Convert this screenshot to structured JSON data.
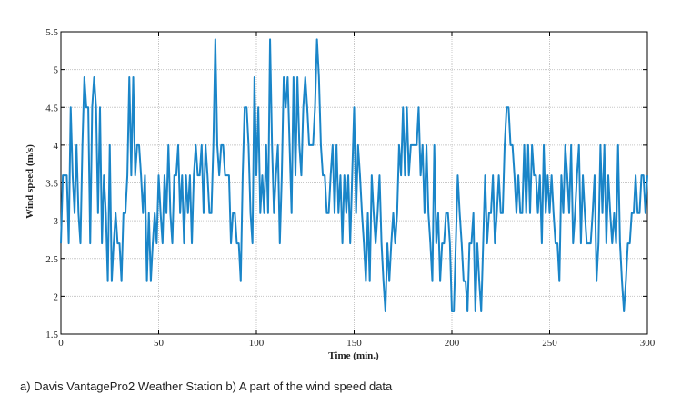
{
  "chart_data": {
    "type": "line",
    "xlabel": "Time (min.)",
    "ylabel": "Wind speed (m/s)",
    "caption": "a) Davis VantagePro2 Weather Station b) A part of the wind speed data",
    "xlim": [
      0,
      300
    ],
    "xticks": [
      0,
      50,
      100,
      150,
      200,
      250,
      300
    ],
    "ylim": [
      1.5,
      5.5
    ],
    "yticks": [
      1.5,
      2,
      2.5,
      3,
      3.5,
      4,
      4.5,
      5,
      5.5
    ],
    "grid": true,
    "x": [
      0,
      1,
      2,
      3,
      4,
      5,
      6,
      7,
      8,
      9,
      10,
      11,
      12,
      13,
      14,
      15,
      16,
      17,
      18,
      19,
      20,
      21,
      22,
      23,
      24,
      25,
      26,
      27,
      28,
      29,
      30,
      31,
      32,
      33,
      34,
      35,
      36,
      37,
      38,
      39,
      40,
      41,
      42,
      43,
      44,
      45,
      46,
      47,
      48,
      49,
      50,
      51,
      52,
      53,
      54,
      55,
      56,
      57,
      58,
      59,
      60,
      61,
      62,
      63,
      64,
      65,
      66,
      67,
      68,
      69,
      70,
      71,
      72,
      73,
      74,
      75,
      76,
      77,
      78,
      79,
      80,
      81,
      82,
      83,
      84,
      85,
      86,
      87,
      88,
      89,
      90,
      91,
      92,
      93,
      94,
      95,
      96,
      97,
      98,
      99,
      100,
      101,
      102,
      103,
      104,
      105,
      106,
      107,
      108,
      109,
      110,
      111,
      112,
      113,
      114,
      115,
      116,
      117,
      118,
      119,
      120,
      121,
      122,
      123,
      124,
      125,
      126,
      127,
      128,
      129,
      130,
      131,
      132,
      133,
      134,
      135,
      136,
      137,
      138,
      139,
      140,
      141,
      142,
      143,
      144,
      145,
      146,
      147,
      148,
      149,
      150,
      151,
      152,
      153,
      154,
      155,
      156,
      157,
      158,
      159,
      160,
      161,
      162,
      163,
      164,
      165,
      166,
      167,
      168,
      169,
      170,
      171,
      172,
      173,
      174,
      175,
      176,
      177,
      178,
      179,
      180,
      181,
      182,
      183,
      184,
      185,
      186,
      187,
      188,
      189,
      190,
      191,
      192,
      193,
      194,
      195,
      196,
      197,
      198,
      199,
      200,
      201,
      202,
      203,
      204,
      205,
      206,
      207,
      208,
      209,
      210,
      211,
      212,
      213,
      214,
      215,
      216,
      217,
      218,
      219,
      220,
      221,
      222,
      223,
      224,
      225,
      226,
      227,
      228,
      229,
      230,
      231,
      232,
      233,
      234,
      235,
      236,
      237,
      238,
      239,
      240,
      241,
      242,
      243,
      244,
      245,
      246,
      247,
      248,
      249,
      250,
      251,
      252,
      253,
      254,
      255,
      256,
      257,
      258,
      259,
      260,
      261,
      262,
      263,
      264,
      265,
      266,
      267,
      268,
      269,
      270,
      271,
      272,
      273,
      274,
      275,
      276,
      277,
      278,
      279,
      280,
      281,
      282,
      283,
      284,
      285,
      286,
      287,
      288,
      289,
      290,
      291,
      292,
      293,
      294,
      295,
      296,
      297,
      298,
      299,
      300
    ],
    "series": [
      {
        "color": "#1a85c8",
        "values": [
          2.7,
          3.6,
          3.6,
          3.6,
          2.7,
          4.5,
          3.6,
          3.1,
          4.0,
          3.1,
          2.7,
          4.0,
          4.9,
          4.5,
          4.5,
          2.7,
          4.5,
          4.9,
          4.5,
          3.1,
          4.5,
          2.7,
          3.6,
          3.1,
          2.2,
          4.0,
          2.2,
          2.7,
          3.1,
          2.7,
          2.7,
          2.2,
          3.1,
          3.1,
          3.6,
          4.9,
          3.6,
          4.9,
          3.6,
          4.0,
          4.0,
          3.6,
          3.1,
          3.6,
          2.2,
          3.1,
          2.2,
          2.7,
          3.1,
          2.7,
          3.6,
          3.1,
          2.7,
          3.6,
          3.1,
          4.0,
          3.1,
          2.7,
          3.6,
          3.6,
          4.0,
          3.1,
          3.6,
          2.7,
          3.6,
          3.1,
          3.6,
          2.7,
          3.6,
          4.0,
          3.6,
          3.6,
          4.0,
          3.1,
          4.0,
          3.6,
          3.1,
          3.1,
          4.0,
          5.4,
          4.0,
          3.6,
          4.0,
          4.0,
          3.6,
          3.6,
          3.6,
          2.7,
          3.1,
          3.1,
          2.7,
          2.7,
          2.2,
          3.6,
          4.5,
          4.5,
          4.0,
          3.1,
          2.7,
          4.9,
          3.6,
          4.5,
          3.1,
          3.6,
          3.1,
          4.0,
          3.1,
          5.4,
          4.0,
          3.1,
          3.6,
          4.0,
          2.7,
          3.6,
          4.9,
          4.5,
          4.9,
          4.0,
          3.1,
          4.9,
          3.6,
          4.9,
          4.0,
          3.6,
          4.5,
          4.9,
          4.5,
          4.0,
          4.0,
          4.0,
          4.5,
          5.4,
          4.9,
          4.0,
          3.6,
          3.6,
          3.1,
          3.1,
          3.6,
          4.0,
          3.1,
          4.0,
          3.1,
          3.6,
          2.7,
          3.6,
          3.1,
          3.6,
          2.7,
          3.6,
          4.5,
          3.1,
          4.0,
          3.6,
          3.1,
          2.7,
          2.2,
          3.1,
          2.2,
          3.6,
          3.1,
          2.7,
          3.1,
          3.6,
          2.7,
          2.2,
          1.8,
          2.7,
          2.2,
          2.7,
          3.1,
          2.7,
          3.1,
          4.0,
          3.6,
          4.5,
          3.6,
          4.5,
          3.6,
          4.0,
          4.0,
          4.0,
          4.0,
          4.5,
          3.6,
          4.0,
          3.1,
          4.0,
          3.1,
          2.7,
          2.2,
          4.0,
          2.7,
          3.1,
          2.2,
          2.7,
          2.7,
          3.1,
          3.1,
          2.7,
          1.8,
          1.8,
          2.7,
          3.6,
          3.1,
          2.7,
          2.2,
          2.2,
          1.8,
          2.7,
          2.7,
          3.1,
          1.8,
          2.7,
          2.2,
          1.8,
          2.7,
          3.6,
          2.7,
          3.1,
          3.1,
          3.6,
          2.7,
          3.1,
          3.6,
          3.1,
          3.1,
          4.0,
          4.5,
          4.5,
          4.0,
          4.0,
          3.6,
          3.1,
          3.6,
          3.1,
          3.1,
          4.0,
          3.1,
          4.0,
          3.1,
          4.0,
          3.6,
          3.6,
          3.1,
          3.6,
          2.7,
          4.0,
          3.1,
          3.6,
          3.1,
          3.6,
          3.1,
          2.7,
          2.7,
          2.2,
          3.6,
          3.1,
          4.0,
          3.6,
          3.1,
          4.0,
          2.7,
          3.1,
          3.6,
          4.0,
          2.7,
          3.6,
          3.1,
          2.7,
          2.7,
          2.7,
          3.1,
          3.6,
          2.2,
          2.7,
          4.0,
          3.1,
          4.0,
          2.7,
          3.6,
          3.1,
          2.7,
          3.1,
          2.7,
          4.0,
          2.7,
          2.2,
          1.8,
          2.2,
          2.7,
          2.7,
          3.1,
          3.1,
          3.6,
          3.1,
          3.1,
          3.6,
          3.6,
          3.1,
          3.6
        ]
      }
    ]
  }
}
